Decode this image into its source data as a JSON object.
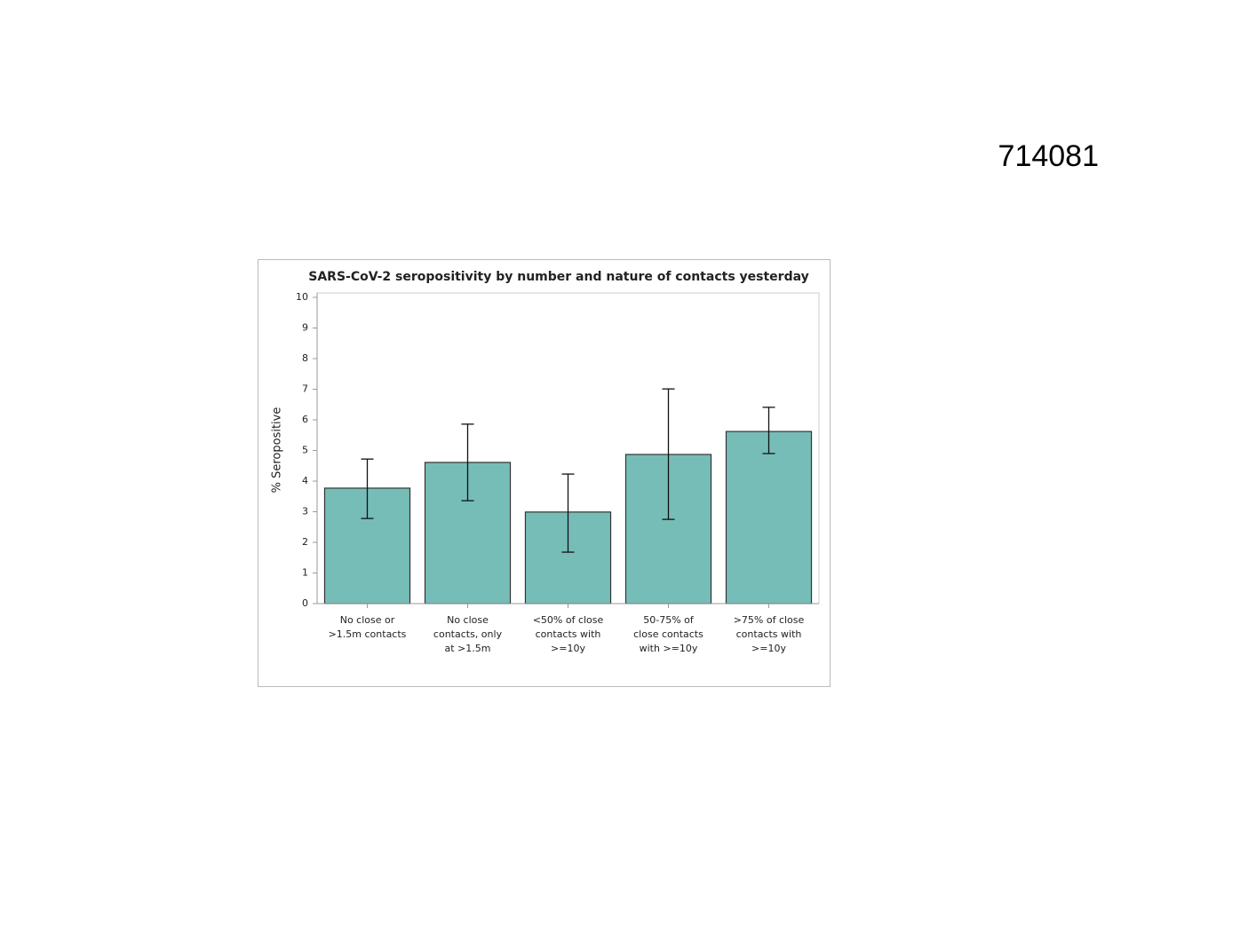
{
  "page_label": "714081",
  "chart_data": {
    "type": "bar",
    "title": "SARS-CoV-2 seropositivity by number and nature of contacts yesterday",
    "y_label": "% Seropositive",
    "categories": [
      [
        "No close or",
        ">1.5m contacts"
      ],
      [
        "No close",
        "contacts, only",
        "at >1.5m"
      ],
      [
        "<50% of close",
        "contacts with",
        ">=10y"
      ],
      [
        "50-75% of",
        "close contacts",
        "with >=10y"
      ],
      [
        ">75% of close",
        "contacts with",
        ">=10y"
      ]
    ],
    "values": [
      3.77,
      4.61,
      2.99,
      4.87,
      5.62
    ],
    "lower": [
      2.78,
      3.36,
      1.68,
      2.75,
      4.9
    ],
    "upper": [
      4.72,
      5.86,
      4.23,
      7.01,
      6.41
    ],
    "color": "#76bdb8",
    "ylim": [
      0,
      10
    ],
    "yticks": [
      0,
      1,
      2,
      3,
      4,
      5,
      6,
      7,
      8,
      9,
      10
    ],
    "grid": false
  }
}
